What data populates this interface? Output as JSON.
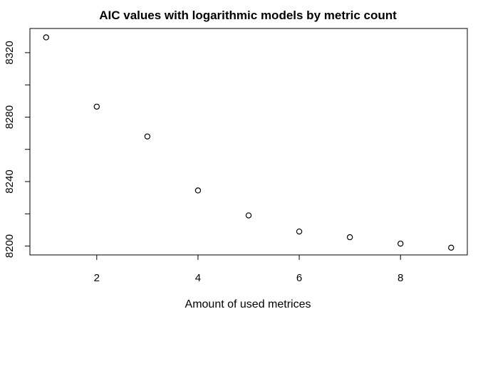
{
  "chart_data": {
    "type": "scatter",
    "title": "AIC values with logarithmic models by metric count",
    "xlabel": "Amount of used metrices",
    "ylabel": "",
    "xlim": [
      0.68,
      9.32
    ],
    "ylim": [
      8194.5,
      8335
    ],
    "x_ticks": [
      2,
      4,
      6,
      8
    ],
    "y_ticks": [
      8200,
      8220,
      8240,
      8260,
      8280,
      8300,
      8320
    ],
    "y_tick_labels": [
      "8200",
      "8240",
      "8280",
      "8320"
    ],
    "grid": false,
    "legend": "none",
    "points": [
      {
        "x": 1,
        "y": 8329.5
      },
      {
        "x": 2,
        "y": 8286.5
      },
      {
        "x": 3,
        "y": 8268
      },
      {
        "x": 4,
        "y": 8234.5
      },
      {
        "x": 5,
        "y": 8219
      },
      {
        "x": 6,
        "y": 8209
      },
      {
        "x": 7,
        "y": 8205.5
      },
      {
        "x": 8,
        "y": 8201.5
      },
      {
        "x": 9,
        "y": 8199
      }
    ]
  }
}
